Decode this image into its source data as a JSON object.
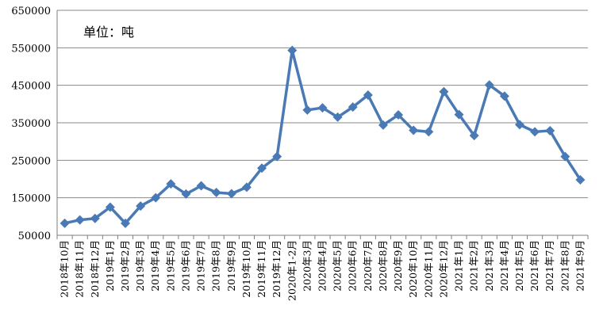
{
  "chart_data": {
    "type": "line",
    "unit_label": "单位：吨",
    "categories": [
      "2018年10月",
      "2018年11月",
      "2018年12月",
      "2019年1月",
      "2019年2月",
      "2019年3月",
      "2019年4月",
      "2019年5月",
      "2019年6月",
      "2019年7月",
      "2019年8月",
      "2019年9月",
      "2019年10月",
      "2019年11月",
      "2019年12月",
      "2020年1-2月",
      "2020年3月",
      "2020年4月",
      "2020年5月",
      "2020年6月",
      "2020年7月",
      "2020年8月",
      "2020年9月",
      "2020年10月",
      "2020年11月",
      "2020年12月",
      "2021年1月",
      "2021年2月",
      "2021年3月",
      "2021年4月",
      "2021年5月",
      "2021年6月",
      "2021年7月",
      "2021年8月",
      "2021年9月"
    ],
    "series": [
      {
        "values": [
          82000,
          91000,
          95000,
          125000,
          82000,
          128000,
          150000,
          187000,
          160000,
          182000,
          164000,
          161000,
          178000,
          229000,
          260000,
          543000,
          384000,
          390000,
          365000,
          392000,
          424000,
          344000,
          371000,
          330000,
          326000,
          433000,
          372000,
          316000,
          451000,
          421000,
          345000,
          326000,
          329000,
          260000,
          198000
        ]
      }
    ],
    "yticks": [
      50000,
      150000,
      250000,
      350000,
      450000,
      550000,
      650000
    ],
    "ylim": [
      50000,
      650000
    ],
    "grid": true,
    "line_color": "#4a7ab5",
    "marker": "diamond"
  }
}
